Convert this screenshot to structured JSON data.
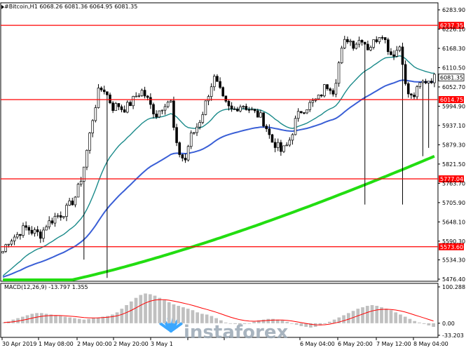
{
  "header": {
    "symbol_line": "#Bitcoin,H1  6068.26 6081.36 6064.95 6081.35"
  },
  "macd_header": "MACD(12,26,9) -13.797 1.355",
  "watermark": "instaforex",
  "colors": {
    "level": "#ff0000",
    "ema_fast": "#1a8a8a",
    "ema_mid": "#3a5fd6",
    "ema_slow": "#22dd11",
    "signal": "#ff0000",
    "hist": "#c0c0c0"
  },
  "chart_data": [
    {
      "type": "candlestick",
      "ylim": [
        5476.4,
        6283.9
      ],
      "y_ticks": [
        "6283.90",
        "6226.10",
        "6168.30",
        "6110.50",
        "6052.70",
        "5994.90",
        "5937.10",
        "5879.30",
        "5821.50",
        "5763.70",
        "5705.90",
        "5648.10",
        "5590.30",
        "5534.30",
        "5476.40"
      ],
      "x_ticks": [
        "30 Apr 2019",
        "1 May 08:00",
        "2 May 00:00",
        "2 May 20:00",
        "3 May 1",
        "",
        "",
        "6 May 04:00",
        "6 May 20:00",
        "7 May 12:00",
        "8 May 04:00"
      ],
      "levels": [
        {
          "label": "6237.35",
          "value": 6237.35
        },
        {
          "label": "6014.75",
          "value": 6014.75
        },
        {
          "label": "5777.04",
          "value": 5777.04
        },
        {
          "label": "5573.60",
          "value": 5573.6
        }
      ],
      "current_price": "6081.35",
      "anchor_path": [
        5560,
        5590,
        5600,
        5610,
        5625,
        5630,
        5620,
        5615,
        5610,
        5640,
        5650,
        5665,
        5670,
        5680,
        5700,
        5720,
        5760,
        5820,
        5900,
        5980,
        6040,
        6050,
        6020,
        5990,
        6000,
        5985,
        5995,
        6010,
        6030,
        6040,
        6020,
        5990,
        5970,
        5990,
        6010,
        6010,
        5880,
        5850,
        5830,
        5900,
        5920,
        5950,
        5990,
        6040,
        6080,
        6050,
        6010,
        5990,
        5980,
        5995,
        6000,
        5990,
        5980,
        5970,
        5960,
        5930,
        5890,
        5880,
        5860,
        5870,
        5900,
        5950,
        5980,
        5990,
        6000,
        6010,
        6020,
        6050,
        6060,
        6040,
        6120,
        6180,
        6200,
        6180,
        6190,
        6200,
        6170,
        6180,
        6200,
        6220,
        6180,
        6150,
        6160,
        6180,
        6050,
        6020,
        6030,
        6060,
        6070,
        6075,
        6080
      ]
    },
    {
      "type": "bar",
      "title": "MACD(12,26,9) -13.797 1.355",
      "y_ticks": [
        "100.288",
        "0.00",
        "-33.203"
      ],
      "ylim": [
        -33.203,
        100.288
      ],
      "hist_path": [
        2,
        5,
        10,
        14,
        18,
        22,
        26,
        28,
        28,
        26,
        24,
        22,
        20,
        18,
        16,
        14,
        12,
        10,
        12,
        14,
        16,
        18,
        20,
        24,
        30,
        40,
        50,
        60,
        70,
        78,
        82,
        80,
        76,
        70,
        64,
        58,
        52,
        48,
        44,
        40,
        36,
        30,
        26,
        24,
        20,
        14,
        8,
        2,
        0,
        -2,
        -4,
        -2,
        0,
        4,
        8,
        10,
        12,
        12,
        10,
        8,
        4,
        0,
        -4,
        -8,
        -10,
        -12,
        -10,
        -6,
        -2,
        4,
        10,
        16,
        22,
        28,
        34,
        40,
        44,
        48,
        50,
        48,
        44,
        40,
        36,
        30,
        24,
        18,
        12,
        6,
        2,
        -2,
        -6,
        -10
      ]
    }
  ]
}
